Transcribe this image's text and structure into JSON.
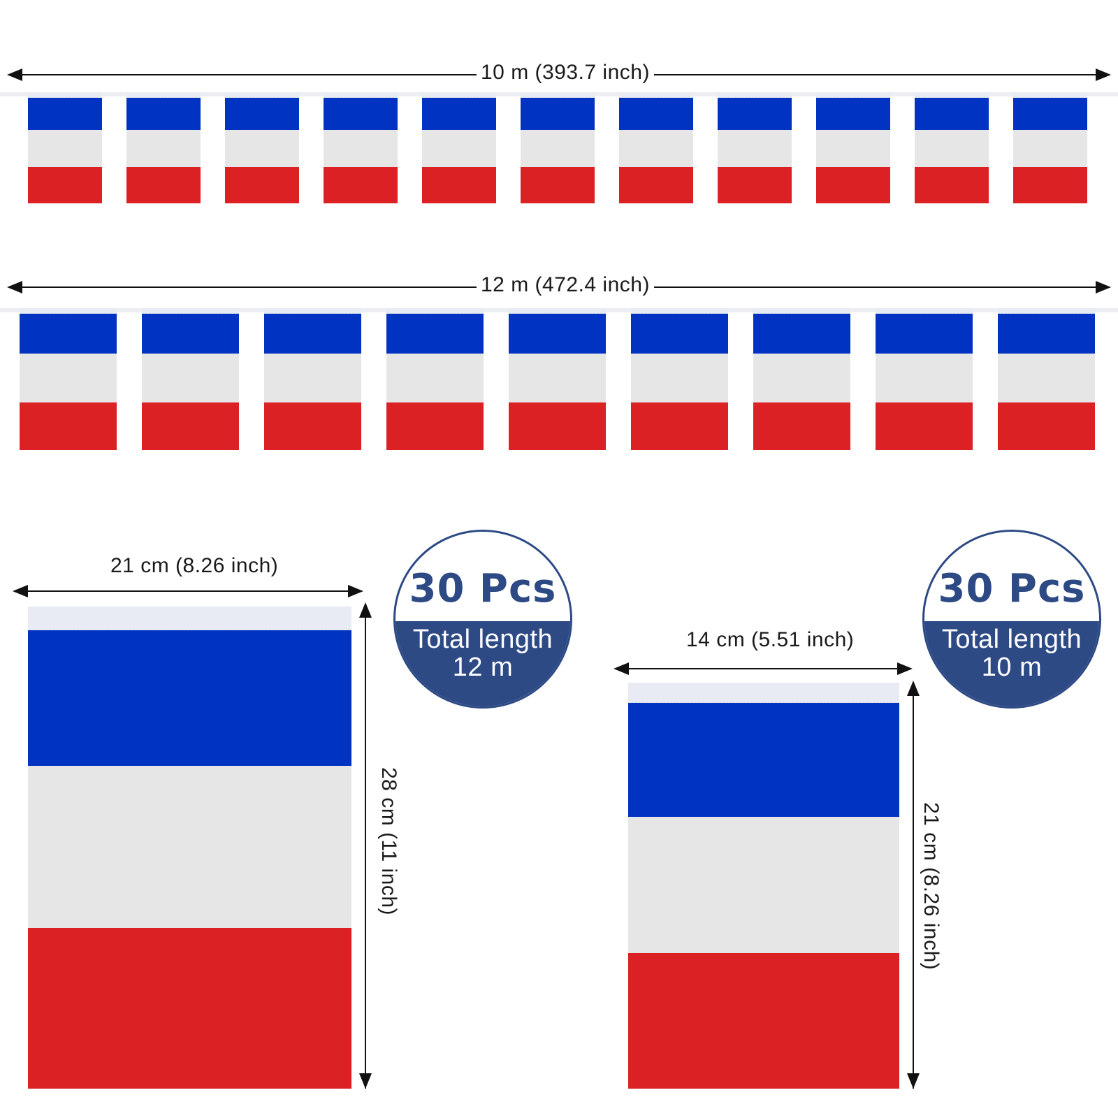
{
  "bunting_top": {
    "length_label": "10 m (393.7 inch)",
    "flag_count": 11
  },
  "bunting_bottom": {
    "length_label": "12 m (472.4 inch)",
    "flag_count": 9
  },
  "large_flag": {
    "width_label": "21 cm (8.26 inch)",
    "height_label": "28 cm (11 inch)"
  },
  "small_flag": {
    "width_label": "14 cm (5.51 inch)",
    "height_label": "21 cm (8.26 inch)"
  },
  "badge_left": {
    "count": "30 Pcs",
    "line1": "Total length",
    "line2": "12 m"
  },
  "badge_right": {
    "count": "30 Pcs",
    "line1": "Total length",
    "line2": "10 m"
  },
  "colors": {
    "blue": "#0033c1",
    "white": "#e6e6e6",
    "red": "#db2124",
    "badge": "#2e4a85"
  }
}
